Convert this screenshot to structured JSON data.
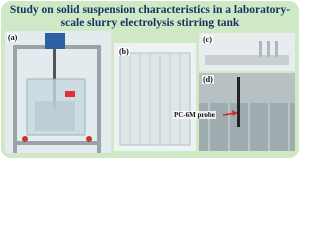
{
  "title": {
    "lines": [
      "Study on solid suspension characteristics in a laboratory-",
      "scale slurry electrolysis stirring tank"
    ]
  },
  "panels": [
    {
      "label": "(a)"
    },
    {
      "label": "(b)"
    },
    {
      "label": "(c)"
    },
    {
      "label": "(d)",
      "annotation": "PC-6M probe"
    }
  ]
}
